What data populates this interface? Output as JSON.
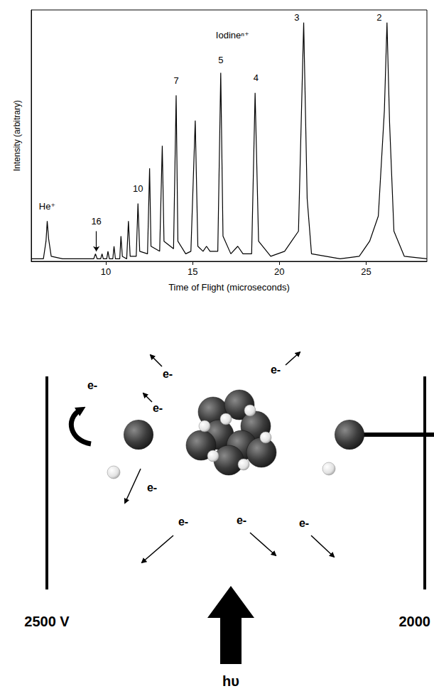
{
  "chart_data": {
    "type": "line",
    "x_label": "Time of Flight (microseconds)",
    "y_label": "Intensity (arbitrary)",
    "x": [
      5.7,
      6.4,
      6.55,
      6.62,
      6.7,
      6.85,
      7.5,
      8.5,
      9.3,
      9.4,
      9.5,
      9.7,
      9.78,
      9.85,
      10.05,
      10.12,
      10.2,
      10.4,
      10.47,
      10.55,
      10.8,
      10.87,
      10.95,
      11.2,
      11.3,
      11.4,
      11.75,
      11.85,
      11.95,
      12.4,
      12.52,
      12.6,
      13.1,
      13.25,
      13.35,
      13.9,
      14.05,
      14.15,
      14.6,
      14.9,
      15.15,
      15.3,
      15.6,
      15.8,
      16.0,
      16.45,
      16.62,
      16.75,
      17.2,
      17.6,
      17.9,
      18.4,
      18.6,
      18.8,
      19.5,
      20.3,
      20.7,
      21.1,
      21.4,
      21.6,
      21.85,
      23.5,
      24.6,
      25.2,
      25.7,
      26.05,
      26.2,
      26.35,
      26.6,
      27.2,
      28.5
    ],
    "values": [
      1,
      1,
      8,
      16,
      9,
      2,
      1,
      1,
      1,
      3,
      1,
      1,
      3,
      1,
      1,
      4,
      1,
      1,
      6,
      1,
      1,
      10,
      2,
      1,
      16,
      2,
      2,
      23,
      4,
      3,
      37,
      6,
      4,
      46,
      8,
      5,
      66,
      8,
      3,
      4,
      56,
      6,
      4,
      6,
      4,
      4,
      75,
      10,
      3,
      6,
      3,
      3,
      67,
      8,
      2,
      4,
      8,
      12,
      95,
      25,
      3,
      1,
      2,
      8,
      18,
      60,
      95,
      55,
      12,
      2,
      1
    ],
    "color": "#000000",
    "xlim": [
      5.7,
      28.5
    ],
    "xticks": [
      10,
      15,
      20,
      25
    ],
    "ylim": [
      0,
      100
    ],
    "tick_labels": "x",
    "grid": false,
    "annotations": [
      {
        "text": "He⁺",
        "x": 6.62,
        "y": 22
      },
      {
        "text": "16",
        "x": 9.45,
        "y": 16,
        "arrow_from": 12,
        "arrow_to": 4
      },
      {
        "text": "10",
        "x": 11.85,
        "y": 29
      },
      {
        "text": "7",
        "x": 14.05,
        "y": 72
      },
      {
        "text": "5",
        "x": 16.62,
        "y": 80
      },
      {
        "text": "Iodineⁿ⁺",
        "x": 17.3,
        "y": 90
      },
      {
        "text": "4",
        "x": 18.65,
        "y": 73
      },
      {
        "text": "3",
        "x": 21.0,
        "y": 97
      },
      {
        "text": "2",
        "x": 25.75,
        "y": 97
      }
    ]
  },
  "diagram": {
    "left_plate": {
      "label": "2500 V"
    },
    "right_plate": {
      "label": "2000"
    },
    "electron_label": "e-",
    "photon_label": "hυ"
  }
}
